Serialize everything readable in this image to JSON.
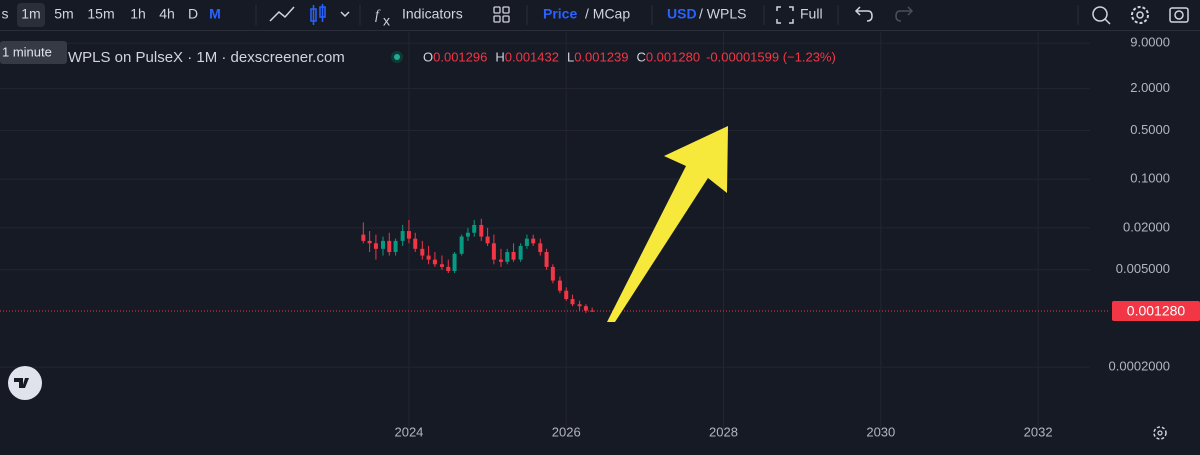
{
  "toolbar": {
    "intervals": [
      "s",
      "1m",
      "5m",
      "15m",
      "1h",
      "4h",
      "D",
      "M"
    ],
    "indicators": "Indicators",
    "price": "Price",
    "mcap": "/ MCap",
    "usd": "USD",
    "wpls": "/ WPLS",
    "full": "Full"
  },
  "tooltip": "1 minute",
  "legend": {
    "title": "WPLS on PulseX · 1M · dexscreener.com",
    "items": [
      {
        "key": "O",
        "value": "0.001296"
      },
      {
        "key": "H",
        "value": "0.001432"
      },
      {
        "key": "L",
        "value": "0.001239"
      },
      {
        "key": "C",
        "value": "0.001280"
      }
    ],
    "change": "-0.00001599 (−1.23%)"
  },
  "chart_data": {
    "type": "candlestick",
    "log_scale": true,
    "grid": true,
    "up_color": "#089981",
    "down_color": "#f23645",
    "xlim": [
      2018.8,
      2032.66
    ],
    "xticks": [
      2024,
      2026,
      2028,
      2030,
      2032
    ],
    "ylim": [
      2.5e-05,
      13
    ],
    "yticks": [
      {
        "value": 9,
        "label": "9.0000"
      },
      {
        "value": 2,
        "label": "2.0000"
      },
      {
        "value": 0.5,
        "label": "0.5000"
      },
      {
        "value": 0.1,
        "label": "0.1000"
      },
      {
        "value": 0.02,
        "label": "0.02000"
      },
      {
        "value": 0.005,
        "label": "0.005000"
      },
      {
        "value": 0.0002,
        "label": "0.0002000"
      }
    ],
    "current_price": {
      "value": 0.00128,
      "label": "0.001280"
    },
    "x": [
      2023.42,
      2023.5,
      2023.58,
      2023.67,
      2023.75,
      2023.83,
      2023.92,
      2024.0,
      2024.08,
      2024.17,
      2024.25,
      2024.33,
      2024.42,
      2024.5,
      2024.58,
      2024.67,
      2024.75,
      2024.83,
      2024.92,
      2025.0,
      2025.08,
      2025.17,
      2025.25,
      2025.33,
      2025.42,
      2025.5,
      2025.58,
      2025.67,
      2025.75,
      2025.83,
      2025.92,
      2026.0,
      2026.08,
      2026.17,
      2026.25,
      2026.33
    ],
    "open": [
      0.016,
      0.013,
      0.012,
      0.01,
      0.013,
      0.009,
      0.013,
      0.018,
      0.014,
      0.01,
      0.008,
      0.007,
      0.006,
      0.0055,
      0.0048,
      0.0085,
      0.015,
      0.017,
      0.022,
      0.015,
      0.012,
      0.007,
      0.0065,
      0.009,
      0.007,
      0.011,
      0.014,
      0.012,
      0.009,
      0.0055,
      0.0035,
      0.0025,
      0.0019,
      0.0016,
      0.0015,
      0.001296
    ],
    "high": [
      0.024,
      0.018,
      0.016,
      0.015,
      0.017,
      0.014,
      0.022,
      0.026,
      0.017,
      0.013,
      0.011,
      0.009,
      0.008,
      0.007,
      0.009,
      0.016,
      0.02,
      0.026,
      0.027,
      0.02,
      0.016,
      0.01,
      0.01,
      0.012,
      0.012,
      0.016,
      0.016,
      0.014,
      0.01,
      0.006,
      0.004,
      0.0028,
      0.0022,
      0.0018,
      0.0016,
      0.001432
    ],
    "low": [
      0.012,
      0.009,
      0.007,
      0.008,
      0.008,
      0.008,
      0.011,
      0.012,
      0.009,
      0.007,
      0.006,
      0.0055,
      0.005,
      0.0045,
      0.0045,
      0.008,
      0.013,
      0.015,
      0.013,
      0.011,
      0.006,
      0.0055,
      0.006,
      0.0065,
      0.0065,
      0.01,
      0.011,
      0.008,
      0.005,
      0.0032,
      0.0023,
      0.0018,
      0.0015,
      0.0013,
      0.0012,
      0.001239
    ],
    "close": [
      0.013,
      0.012,
      0.01,
      0.013,
      0.009,
      0.013,
      0.018,
      0.014,
      0.01,
      0.008,
      0.007,
      0.006,
      0.0055,
      0.0048,
      0.0085,
      0.015,
      0.017,
      0.022,
      0.015,
      0.012,
      0.007,
      0.0065,
      0.009,
      0.007,
      0.011,
      0.014,
      0.012,
      0.009,
      0.0055,
      0.0035,
      0.0025,
      0.0019,
      0.0016,
      0.0015,
      0.001296,
      0.00128
    ]
  }
}
